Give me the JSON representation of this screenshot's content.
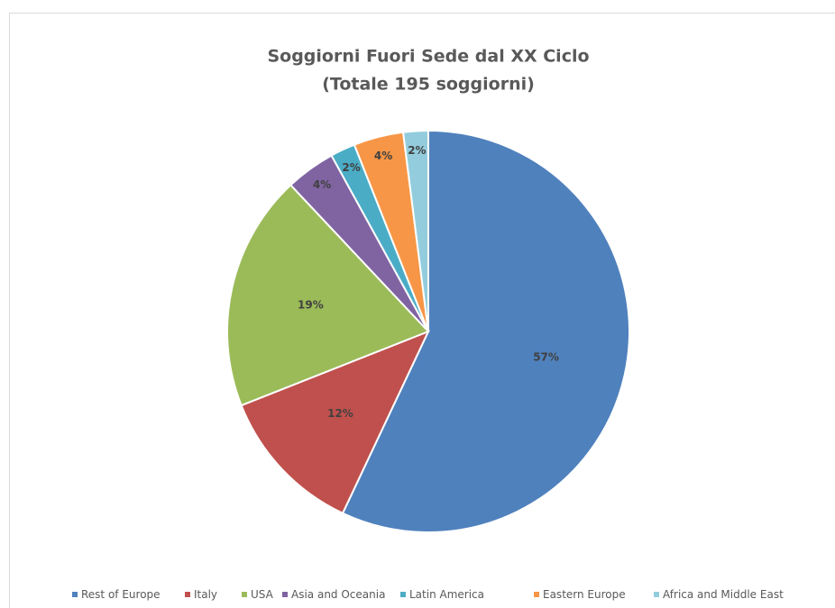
{
  "chart_data": {
    "type": "pie",
    "title": "Soggiorni Fuori Sede dal XX Ciclo",
    "subtitle": "(Totale 195 soggiorni)",
    "categories": [
      "Rest of Europe",
      "Italy",
      "USA",
      "Asia and Oceania",
      "Latin America",
      "Eastern Europe",
      "Africa and Middle East"
    ],
    "values": [
      57,
      12,
      19,
      4,
      2,
      4,
      2
    ],
    "value_labels": [
      "57%",
      "12%",
      "19%",
      "4%",
      "2%",
      "4%",
      "2%"
    ],
    "colors": [
      "#4f81bd",
      "#c0504d",
      "#9bbb59",
      "#8064a2",
      "#4bacc6",
      "#f79646",
      "#93cddd"
    ],
    "legend": "bottom"
  }
}
